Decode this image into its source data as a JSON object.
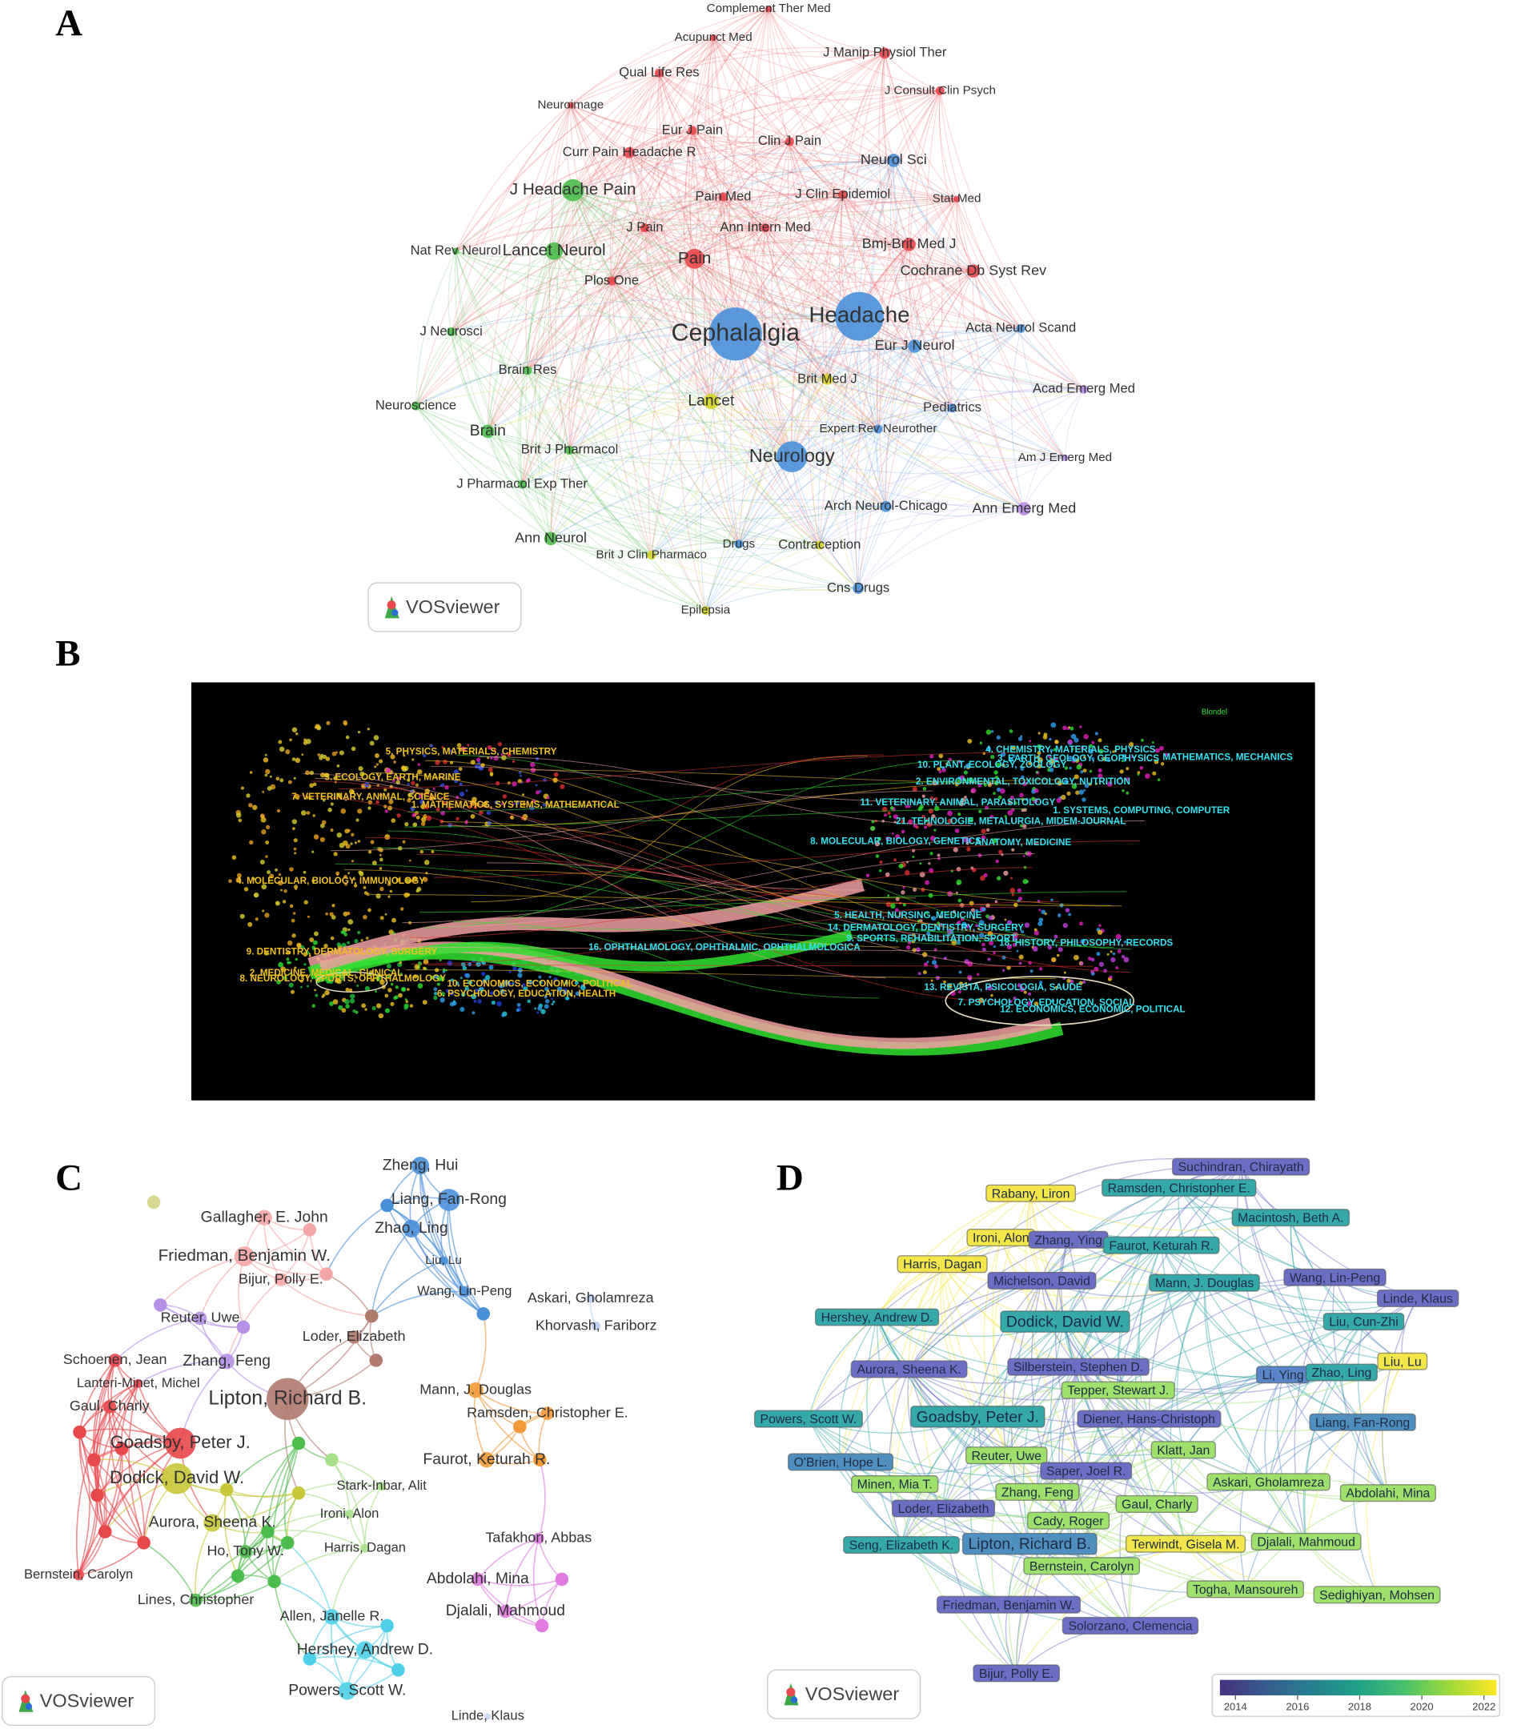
{
  "panels": {
    "a": {
      "label": "A",
      "logo": "VOSviewer",
      "nodes": [
        {
          "label": "Complement Ther Med",
          "color": "#e8474c"
        },
        {
          "label": "Acupunct Med",
          "color": "#e8474c"
        },
        {
          "label": "J Manip Physiol Ther",
          "color": "#e8474c"
        },
        {
          "label": "Qual Life Res",
          "color": "#e8474c"
        },
        {
          "label": "J Consult Clin Psych",
          "color": "#e8474c"
        },
        {
          "label": "Neuroimage",
          "color": "#e8474c"
        },
        {
          "label": "Eur J Pain",
          "color": "#e8474c"
        },
        {
          "label": "Clin J Pain",
          "color": "#e8474c"
        },
        {
          "label": "Curr Pain Headache R",
          "color": "#e8474c"
        },
        {
          "label": "Neurol Sci",
          "color": "#4a90d9"
        },
        {
          "label": "J Headache Pain",
          "color": "#4cbc4c"
        },
        {
          "label": "Pain Med",
          "color": "#e8474c"
        },
        {
          "label": "J Clin Epidemiol",
          "color": "#e8474c"
        },
        {
          "label": "Stat Med",
          "color": "#e8474c"
        },
        {
          "label": "J Pain",
          "color": "#e8474c"
        },
        {
          "label": "Ann Intern Med",
          "color": "#e8474c"
        },
        {
          "label": "Bmj-Brit Med J",
          "color": "#e8474c"
        },
        {
          "label": "Nat Rev Neurol",
          "color": "#4cbc4c"
        },
        {
          "label": "Lancet Neurol",
          "color": "#4cbc4c"
        },
        {
          "label": "Pain",
          "color": "#e8474c"
        },
        {
          "label": "Cochrane Db Syst Rev",
          "color": "#e8474c"
        },
        {
          "label": "Plos One",
          "color": "#e8474c"
        },
        {
          "label": "Headache",
          "color": "#4a90d9"
        },
        {
          "label": "Cephalalgia",
          "color": "#4a90d9"
        },
        {
          "label": "Acta Neurol Scand",
          "color": "#4a90d9"
        },
        {
          "label": "J Neurosci",
          "color": "#4cbc4c"
        },
        {
          "label": "Eur J Neurol",
          "color": "#4a90d9"
        },
        {
          "label": "Brain Res",
          "color": "#4cbc4c"
        },
        {
          "label": "Brit Med J",
          "color": "#d4d42a"
        },
        {
          "label": "Acad Emerg Med",
          "color": "#b98ee8"
        },
        {
          "label": "Lancet",
          "color": "#d4d42a"
        },
        {
          "label": "Neuroscience",
          "color": "#4cbc4c"
        },
        {
          "label": "Pediatrics",
          "color": "#4a90d9"
        },
        {
          "label": "Brain",
          "color": "#4cbc4c"
        },
        {
          "label": "Neurology",
          "color": "#4a90d9"
        },
        {
          "label": "Expert Rev Neurother",
          "color": "#4a90d9"
        },
        {
          "label": "Brit J Pharmacol",
          "color": "#4cbc4c"
        },
        {
          "label": "Am J Emerg Med",
          "color": "#b98ee8"
        },
        {
          "label": "J Pharmacol Exp Ther",
          "color": "#4cbc4c"
        },
        {
          "label": "Arch Neurol-Chicago",
          "color": "#4a90d9"
        },
        {
          "label": "Ann Emerg Med",
          "color": "#b98ee8"
        },
        {
          "label": "Ann Neurol",
          "color": "#4cbc4c"
        },
        {
          "label": "Drugs",
          "color": "#4a90d9"
        },
        {
          "label": "Contraception",
          "color": "#d4d42a"
        },
        {
          "label": "Brit J Clin Pharmaco",
          "color": "#d4d42a"
        },
        {
          "label": "Cns Drugs",
          "color": "#4a90d9"
        },
        {
          "label": "Epilepsia",
          "color": "#d4d42a"
        }
      ]
    },
    "b": {
      "label": "B",
      "corner_text": "Blondel",
      "left_color": "#f0c020",
      "right_color": "#35e0f0",
      "left_labels": [
        "5. PHYSICS, MATERIALS, CHEMISTRY",
        "3. ECOLOGY, EARTH, MARINE",
        "7. VETERINARY, ANIMAL, SCIENCE",
        "1. MATHEMATICS, SYSTEMS, MATHEMATICAL",
        "4. MOLECULAR, BIOLOGY, IMMUNOLOGY",
        "9. DENTISTRY, DERMATOLOGY, SURGERY",
        "2. MEDICINE, MEDICAL, CLINICAL",
        "8. NEUROLOGY, SPORTS, OPHTHALMOLOGY",
        "10. ECONOMICS, ECONOMIC, POLITICAL",
        "6. PSYCHOLOGY, EDUCATION, HEALTH"
      ],
      "right_labels": [
        "4. CHEMISTRY, MATERIALS, PHYSICS",
        "3. EARTH, GEOLOGY, GEOPHYSICS",
        "10. PLANT, ECOLOGY, ZOOLOGY",
        "MATHEMATICS, MECHANICS",
        "2. ENVIRONMENTAL, TOXICOLOGY, NUTRITION",
        "11. VETERINARY, ANIMAL, PARASITOLOGY",
        "1. SYSTEMS, COMPUTING, COMPUTER",
        "21. TEHNOLOGIE, METALURGIA, MIDEM-JOURNAL",
        "8. MOLECULAR, BIOLOGY, GENETICS",
        "ANATOMY, MEDICINE",
        "5. HEALTH, NURSING, MEDICINE",
        "14. DERMATOLOGY, DENTISTRY, SURGERY",
        "9. SPORTS, REHABILITATION, SPORT",
        "18. HISTORY, PHILOSOPHY, RECORDS",
        "16. OPHTHALMOLOGY, OPHTHALMIC, OPHTHALMOLOGICA",
        "13. REVISTA, PSICOLOGIA, SAUDE",
        "7. PSYCHOLOGY, EDUCATION, SOCIAL",
        "12. ECONOMICS, ECONOMIC, POLITICAL"
      ]
    },
    "c": {
      "label": "C",
      "logo": "VOSviewer",
      "nodes": [
        {
          "label": "Zheng, Hui",
          "color": "#4a90d9"
        },
        {
          "label": "Liang, Fan-Rong",
          "color": "#4a90d9"
        },
        {
          "label": "Zhao, Ling",
          "color": "#4a90d9"
        },
        {
          "label": "Liu, Lu",
          "color": "#4a90d9"
        },
        {
          "label": "Wang, Lin-Peng",
          "color": "#4a90d9"
        },
        {
          "label": "Askari, Gholamreza",
          "color": "#b8cdf0"
        },
        {
          "label": "Khorvash, Fariborz",
          "color": "#b8cdf0"
        },
        {
          "label": "Gallagher, E. John",
          "color": "#f4a6a6"
        },
        {
          "label": "Friedman, Benjamin W.",
          "color": "#f4a6a6"
        },
        {
          "label": "Bijur, Polly E.",
          "color": "#f4a6a6"
        },
        {
          "label": "Reuter, Uwe",
          "color": "#b690e6"
        },
        {
          "label": "Loder, Elizabeth",
          "color": "#b07a6e"
        },
        {
          "label": "Schoenen, Jean",
          "color": "#e8474c"
        },
        {
          "label": "Zhang, Feng",
          "color": "#b690e6"
        },
        {
          "label": "Lanteri-Minet, Michel",
          "color": "#e8474c"
        },
        {
          "label": "Lipton, Richard B.",
          "color": "#b07a6e"
        },
        {
          "label": "Gaul, Charly",
          "color": "#e8474c"
        },
        {
          "label": "Mann, J. Douglas",
          "color": "#f29a3a"
        },
        {
          "label": "Ramsden, Christopher E.",
          "color": "#f29a3a"
        },
        {
          "label": "Goadsby, Peter J.",
          "color": "#e8474c"
        },
        {
          "label": "Faurot, Keturah R.",
          "color": "#f29a3a"
        },
        {
          "label": "Dodick, David W.",
          "color": "#c8c83a"
        },
        {
          "label": "Stark-Inbar, Alit",
          "color": "#a8e08a"
        },
        {
          "label": "Ironi, Alon",
          "color": "#a8e08a"
        },
        {
          "label": "Aurora, Sheena K.",
          "color": "#c8c83a"
        },
        {
          "label": "Tafakhori, Abbas",
          "color": "#e07be0"
        },
        {
          "label": "Ho, Tony W.",
          "color": "#4cbc4c"
        },
        {
          "label": "Harris, Dagan",
          "color": "#a8e08a"
        },
        {
          "label": "Abdolahi, Mina",
          "color": "#e07be0"
        },
        {
          "label": "Bernstein, Carolyn",
          "color": "#e8474c"
        },
        {
          "label": "Djalali, Mahmoud",
          "color": "#e07be0"
        },
        {
          "label": "Lines, Christopher",
          "color": "#4cbc4c"
        },
        {
          "label": "Allen, Janelle R.",
          "color": "#4fd0e8"
        },
        {
          "label": "Hershey, Andrew D.",
          "color": "#4fd0e8"
        },
        {
          "label": "Powers, Scott W.",
          "color": "#4fd0e8"
        },
        {
          "label": "Linde, Klaus",
          "color": "#c8d8f0"
        }
      ]
    },
    "d": {
      "label": "D",
      "logo": "VOSviewer",
      "colorbar": {
        "colors": [
          "#46327e",
          "#365c8d",
          "#277f8e",
          "#1fa187",
          "#4ac16d",
          "#a0da39",
          "#fde725"
        ],
        "range": [
          2013.5,
          2022.4
        ],
        "ticks": [
          2014,
          2016,
          2018,
          2020,
          2022
        ]
      },
      "nodes": [
        {
          "label": "Suchindran, Chirayath",
          "color": "#6b6fc4"
        },
        {
          "label": "Rabany, Liron",
          "color": "#f3e64a"
        },
        {
          "label": "Ramsden, Christopher E.",
          "color": "#35a9a8"
        },
        {
          "label": "Macintosh, Beth A.",
          "color": "#35a9a8"
        },
        {
          "label": "Ironi, Alon",
          "color": "#f3e64a"
        },
        {
          "label": "Zhang, Ying",
          "color": "#6b6fc4"
        },
        {
          "label": "Faurot, Keturah R.",
          "color": "#35a9a8"
        },
        {
          "label": "Harris, Dagan",
          "color": "#f3e64a"
        },
        {
          "label": "Michelson, David",
          "color": "#6b6fc4"
        },
        {
          "label": "Mann, J. Douglas",
          "color": "#35a9a8"
        },
        {
          "label": "Wang, Lin-Peng",
          "color": "#6b6fc4"
        },
        {
          "label": "Linde, Klaus",
          "color": "#6b6fc4"
        },
        {
          "label": "Hershey, Andrew D.",
          "color": "#35a9a8"
        },
        {
          "label": "Dodick, David W.",
          "color": "#35a9a8"
        },
        {
          "label": "Liu, Cun-Zhi",
          "color": "#35a9a8"
        },
        {
          "label": "Aurora, Sheena K.",
          "color": "#6b6fc4"
        },
        {
          "label": "Silberstein, Stephen D.",
          "color": "#6b6fc4"
        },
        {
          "label": "Tepper, Stewart J.",
          "color": "#9ee06b"
        },
        {
          "label": "Li, Ying",
          "color": "#5a86c8"
        },
        {
          "label": "Zhao, Ling",
          "color": "#35a9a8"
        },
        {
          "label": "Liu, Lu",
          "color": "#f3e64a"
        },
        {
          "label": "Powers, Scott W.",
          "color": "#35a9a8"
        },
        {
          "label": "Goadsby, Peter J.",
          "color": "#35a9a8"
        },
        {
          "label": "Diener, Hans-Christoph",
          "color": "#6b6fc4"
        },
        {
          "label": "Liang, Fan-Rong",
          "color": "#4f8fc0"
        },
        {
          "label": "Klatt, Jan",
          "color": "#9ee06b"
        },
        {
          "label": "O'Brien, Hope L.",
          "color": "#4f8fc0"
        },
        {
          "label": "Reuter, Uwe",
          "color": "#9ee06b"
        },
        {
          "label": "Saper, Joel R.",
          "color": "#6b6fc4"
        },
        {
          "label": "Minen, Mia T.",
          "color": "#9ee06b"
        },
        {
          "label": "Zhang, Feng",
          "color": "#9ee06b"
        },
        {
          "label": "Askari, Gholamreza",
          "color": "#9ee06b"
        },
        {
          "label": "Abdolahi, Mina",
          "color": "#9ee06b"
        },
        {
          "label": "Loder, Elizabeth",
          "color": "#6b6fc4"
        },
        {
          "label": "Gaul, Charly",
          "color": "#9ee06b"
        },
        {
          "label": "Cady, Roger",
          "color": "#9ee06b"
        },
        {
          "label": "Seng, Elizabeth K.",
          "color": "#35a9a8"
        },
        {
          "label": "Lipton, Richard B.",
          "color": "#4f8fc0"
        },
        {
          "label": "Terwindt, Gisela M.",
          "color": "#f3e64a"
        },
        {
          "label": "Djalali, Mahmoud",
          "color": "#9ee06b"
        },
        {
          "label": "Bernstein, Carolyn",
          "color": "#9ee06b"
        },
        {
          "label": "Togha, Mansoureh",
          "color": "#9ee06b"
        },
        {
          "label": "Sedighiyan, Mohsen",
          "color": "#9ee06b"
        },
        {
          "label": "Friedman, Benjamin W.",
          "color": "#6b6fc4"
        },
        {
          "label": "Solorzano, Clemencia",
          "color": "#6b6fc4"
        },
        {
          "label": "Bijur, Polly E.",
          "color": "#6b6fc4"
        }
      ]
    }
  }
}
